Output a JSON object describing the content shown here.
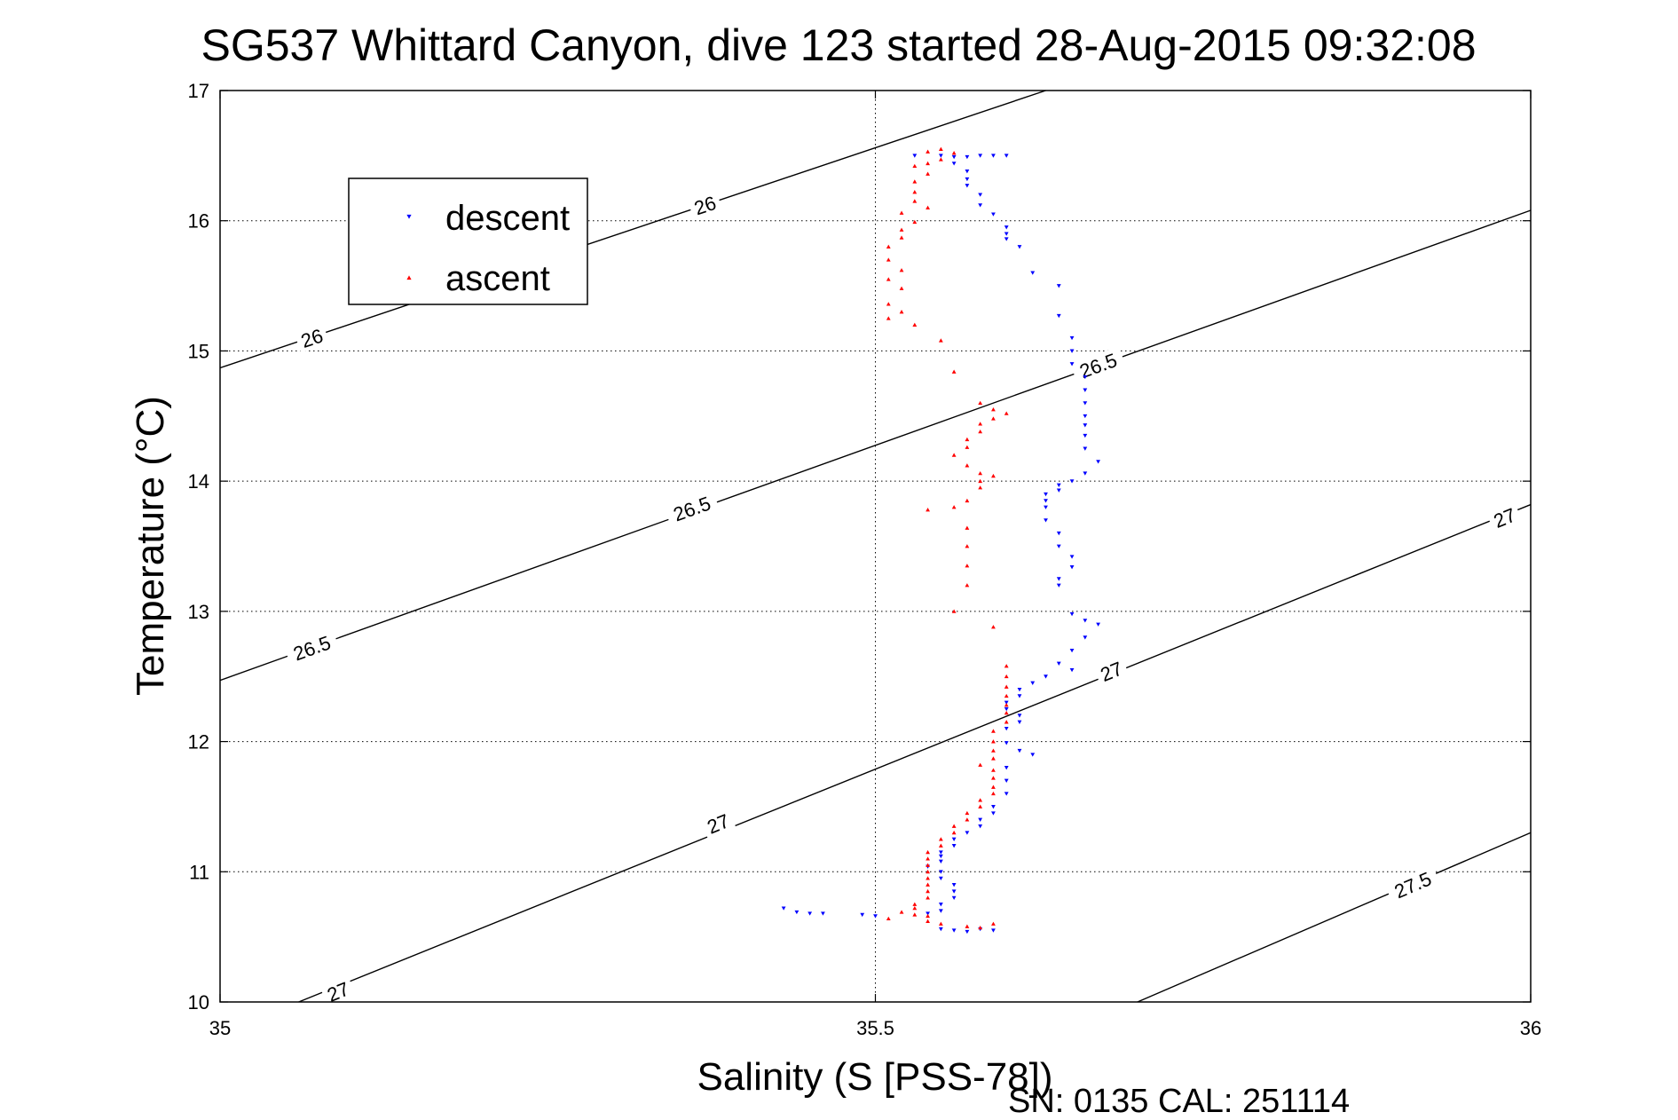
{
  "chart_data": {
    "type": "scatter",
    "title": "SG537 Whittard Canyon, dive 123 started 28-Aug-2015 09:32:08",
    "xlabel": "Salinity (S [PSS-78])",
    "ylabel": "Temperature (°C)",
    "xlim": [
      35,
      36
    ],
    "ylim": [
      10,
      17
    ],
    "xticks": [
      "35",
      "35.5",
      "36"
    ],
    "yticks": [
      "10",
      "11",
      "12",
      "13",
      "14",
      "15",
      "16",
      "17"
    ],
    "grid": true,
    "legend_position": "top-left",
    "footer": "SN: 0135  CAL: 251114",
    "series": [
      {
        "name": "descent",
        "color": "#0000ff",
        "marker": "triangle-down",
        "points": [
          [
            35.53,
            16.5
          ],
          [
            35.55,
            16.5
          ],
          [
            35.56,
            16.49
          ],
          [
            35.57,
            16.49
          ],
          [
            35.58,
            16.5
          ],
          [
            35.59,
            16.5
          ],
          [
            35.6,
            16.5
          ],
          [
            35.56,
            16.44
          ],
          [
            35.57,
            16.38
          ],
          [
            35.57,
            16.32
          ],
          [
            35.57,
            16.27
          ],
          [
            35.58,
            16.2
          ],
          [
            35.58,
            16.12
          ],
          [
            35.59,
            16.05
          ],
          [
            35.6,
            15.95
          ],
          [
            35.6,
            15.9
          ],
          [
            35.6,
            15.86
          ],
          [
            35.61,
            15.8
          ],
          [
            35.62,
            15.6
          ],
          [
            35.64,
            15.5
          ],
          [
            35.64,
            15.27
          ],
          [
            35.65,
            15.1
          ],
          [
            35.65,
            15.0
          ],
          [
            35.65,
            14.9
          ],
          [
            35.66,
            14.8
          ],
          [
            35.66,
            14.7
          ],
          [
            35.66,
            14.6
          ],
          [
            35.66,
            14.5
          ],
          [
            35.66,
            14.43
          ],
          [
            35.66,
            14.35
          ],
          [
            35.66,
            14.25
          ],
          [
            35.67,
            14.15
          ],
          [
            35.66,
            14.06
          ],
          [
            35.65,
            14.0
          ],
          [
            35.64,
            13.97
          ],
          [
            35.64,
            13.93
          ],
          [
            35.63,
            13.9
          ],
          [
            35.63,
            13.85
          ],
          [
            35.63,
            13.8
          ],
          [
            35.63,
            13.7
          ],
          [
            35.64,
            13.6
          ],
          [
            35.64,
            13.5
          ],
          [
            35.65,
            13.42
          ],
          [
            35.65,
            13.34
          ],
          [
            35.64,
            13.25
          ],
          [
            35.64,
            13.2
          ],
          [
            35.65,
            12.98
          ],
          [
            35.66,
            12.93
          ],
          [
            35.67,
            12.9
          ],
          [
            35.66,
            12.8
          ],
          [
            35.65,
            12.7
          ],
          [
            35.64,
            12.6
          ],
          [
            35.65,
            12.55
          ],
          [
            35.63,
            12.5
          ],
          [
            35.62,
            12.45
          ],
          [
            35.61,
            12.4
          ],
          [
            35.61,
            12.35
          ],
          [
            35.6,
            12.3
          ],
          [
            35.6,
            12.25
          ],
          [
            35.61,
            12.2
          ],
          [
            35.61,
            12.15
          ],
          [
            35.6,
            12.1
          ],
          [
            35.6,
            11.99
          ],
          [
            35.61,
            11.93
          ],
          [
            35.62,
            11.9
          ],
          [
            35.6,
            11.8
          ],
          [
            35.6,
            11.7
          ],
          [
            35.6,
            11.6
          ],
          [
            35.59,
            11.5
          ],
          [
            35.59,
            11.45
          ],
          [
            35.58,
            11.4
          ],
          [
            35.58,
            11.35
          ],
          [
            35.57,
            11.3
          ],
          [
            35.56,
            11.25
          ],
          [
            35.56,
            11.2
          ],
          [
            35.55,
            11.15
          ],
          [
            35.55,
            11.12
          ],
          [
            35.55,
            11.08
          ],
          [
            35.54,
            11.04
          ],
          [
            35.55,
            11.0
          ],
          [
            35.55,
            10.95
          ],
          [
            35.56,
            10.9
          ],
          [
            35.56,
            10.85
          ],
          [
            35.56,
            10.8
          ],
          [
            35.55,
            10.75
          ],
          [
            35.55,
            10.7
          ],
          [
            35.54,
            10.68
          ],
          [
            35.49,
            10.67
          ],
          [
            35.5,
            10.66
          ],
          [
            35.43,
            10.72
          ],
          [
            35.44,
            10.69
          ],
          [
            35.45,
            10.68
          ],
          [
            35.46,
            10.68
          ],
          [
            35.55,
            10.56
          ],
          [
            35.56,
            10.55
          ],
          [
            35.57,
            10.54
          ],
          [
            35.58,
            10.56
          ],
          [
            35.59,
            10.55
          ]
        ]
      },
      {
        "name": "ascent",
        "color": "#ff0000",
        "marker": "triangle-up",
        "points": [
          [
            35.54,
            16.53
          ],
          [
            35.55,
            16.55
          ],
          [
            35.56,
            16.52
          ],
          [
            35.55,
            16.47
          ],
          [
            35.54,
            16.44
          ],
          [
            35.53,
            16.42
          ],
          [
            35.54,
            16.36
          ],
          [
            35.53,
            16.3
          ],
          [
            35.53,
            16.22
          ],
          [
            35.53,
            16.15
          ],
          [
            35.54,
            16.1
          ],
          [
            35.52,
            16.06
          ],
          [
            35.53,
            15.99
          ],
          [
            35.52,
            15.93
          ],
          [
            35.52,
            15.87
          ],
          [
            35.51,
            15.8
          ],
          [
            35.51,
            15.7
          ],
          [
            35.52,
            15.62
          ],
          [
            35.51,
            15.55
          ],
          [
            35.52,
            15.48
          ],
          [
            35.51,
            15.36
          ],
          [
            35.52,
            15.3
          ],
          [
            35.51,
            15.25
          ],
          [
            35.53,
            15.2
          ],
          [
            35.55,
            15.08
          ],
          [
            35.56,
            14.84
          ],
          [
            35.58,
            14.6
          ],
          [
            35.59,
            14.55
          ],
          [
            35.6,
            14.52
          ],
          [
            35.59,
            14.48
          ],
          [
            35.58,
            14.44
          ],
          [
            35.58,
            14.38
          ],
          [
            35.57,
            14.32
          ],
          [
            35.57,
            14.26
          ],
          [
            35.56,
            14.2
          ],
          [
            35.57,
            14.12
          ],
          [
            35.58,
            14.06
          ],
          [
            35.59,
            14.04
          ],
          [
            35.58,
            14.0
          ],
          [
            35.58,
            13.95
          ],
          [
            35.57,
            13.85
          ],
          [
            35.56,
            13.8
          ],
          [
            35.54,
            13.78
          ],
          [
            35.57,
            13.64
          ],
          [
            35.57,
            13.5
          ],
          [
            35.57,
            13.35
          ],
          [
            35.57,
            13.2
          ],
          [
            35.56,
            13.0
          ],
          [
            35.59,
            12.88
          ],
          [
            35.6,
            12.58
          ],
          [
            35.6,
            12.5
          ],
          [
            35.6,
            12.42
          ],
          [
            35.6,
            12.35
          ],
          [
            35.6,
            12.28
          ],
          [
            35.6,
            12.22
          ],
          [
            35.6,
            12.15
          ],
          [
            35.59,
            12.08
          ],
          [
            35.59,
            12.0
          ],
          [
            35.59,
            11.93
          ],
          [
            35.59,
            11.87
          ],
          [
            35.58,
            11.82
          ],
          [
            35.59,
            11.78
          ],
          [
            35.59,
            11.72
          ],
          [
            35.59,
            11.65
          ],
          [
            35.59,
            11.6
          ],
          [
            35.58,
            11.55
          ],
          [
            35.58,
            11.5
          ],
          [
            35.57,
            11.45
          ],
          [
            35.57,
            11.4
          ],
          [
            35.56,
            11.35
          ],
          [
            35.56,
            11.3
          ],
          [
            35.55,
            11.25
          ],
          [
            35.55,
            11.2
          ],
          [
            35.54,
            11.15
          ],
          [
            35.54,
            11.1
          ],
          [
            35.54,
            11.05
          ],
          [
            35.54,
            11.0
          ],
          [
            35.54,
            10.95
          ],
          [
            35.54,
            10.9
          ],
          [
            35.54,
            10.85
          ],
          [
            35.54,
            10.8
          ],
          [
            35.53,
            10.75
          ],
          [
            35.53,
            10.72
          ],
          [
            35.52,
            10.69
          ],
          [
            35.53,
            10.67
          ],
          [
            35.54,
            10.66
          ],
          [
            35.51,
            10.64
          ],
          [
            35.54,
            10.62
          ],
          [
            35.55,
            10.6
          ],
          [
            35.57,
            10.58
          ],
          [
            35.58,
            10.57
          ],
          [
            35.59,
            10.6
          ]
        ]
      }
    ],
    "contours": [
      {
        "value": 26,
        "points": [
          [
            35,
            14.87
          ],
          [
            35.63,
            17
          ]
        ],
        "labels": [
          {
            "text": "26",
            "x": 35.07,
            "y": 15.1
          },
          {
            "text": "26",
            "x": 35.37,
            "y": 16.12
          }
        ]
      },
      {
        "value": 26.5,
        "points": [
          [
            35,
            12.47
          ],
          [
            36,
            16.08
          ]
        ],
        "labels": [
          {
            "text": "26.5",
            "x": 35.07,
            "y": 12.72
          },
          {
            "text": "26.5",
            "x": 35.36,
            "y": 13.79
          },
          {
            "text": "26.5",
            "x": 35.67,
            "y": 14.89
          }
        ]
      },
      {
        "value": 27,
        "points": [
          [
            35.06,
            10
          ],
          [
            36,
            13.82
          ]
        ],
        "labels": [
          {
            "text": "27",
            "x": 35.09,
            "y": 10.08
          },
          {
            "text": "27",
            "x": 35.38,
            "y": 11.37
          },
          {
            "text": "27",
            "x": 35.68,
            "y": 12.54
          },
          {
            "text": "27",
            "x": 35.98,
            "y": 13.72
          }
        ]
      },
      {
        "value": 27.5,
        "points": [
          [
            35.7,
            10
          ],
          [
            36,
            11.3
          ]
        ],
        "labels": [
          {
            "text": "27.5",
            "x": 35.91,
            "y": 10.9
          }
        ]
      }
    ]
  }
}
